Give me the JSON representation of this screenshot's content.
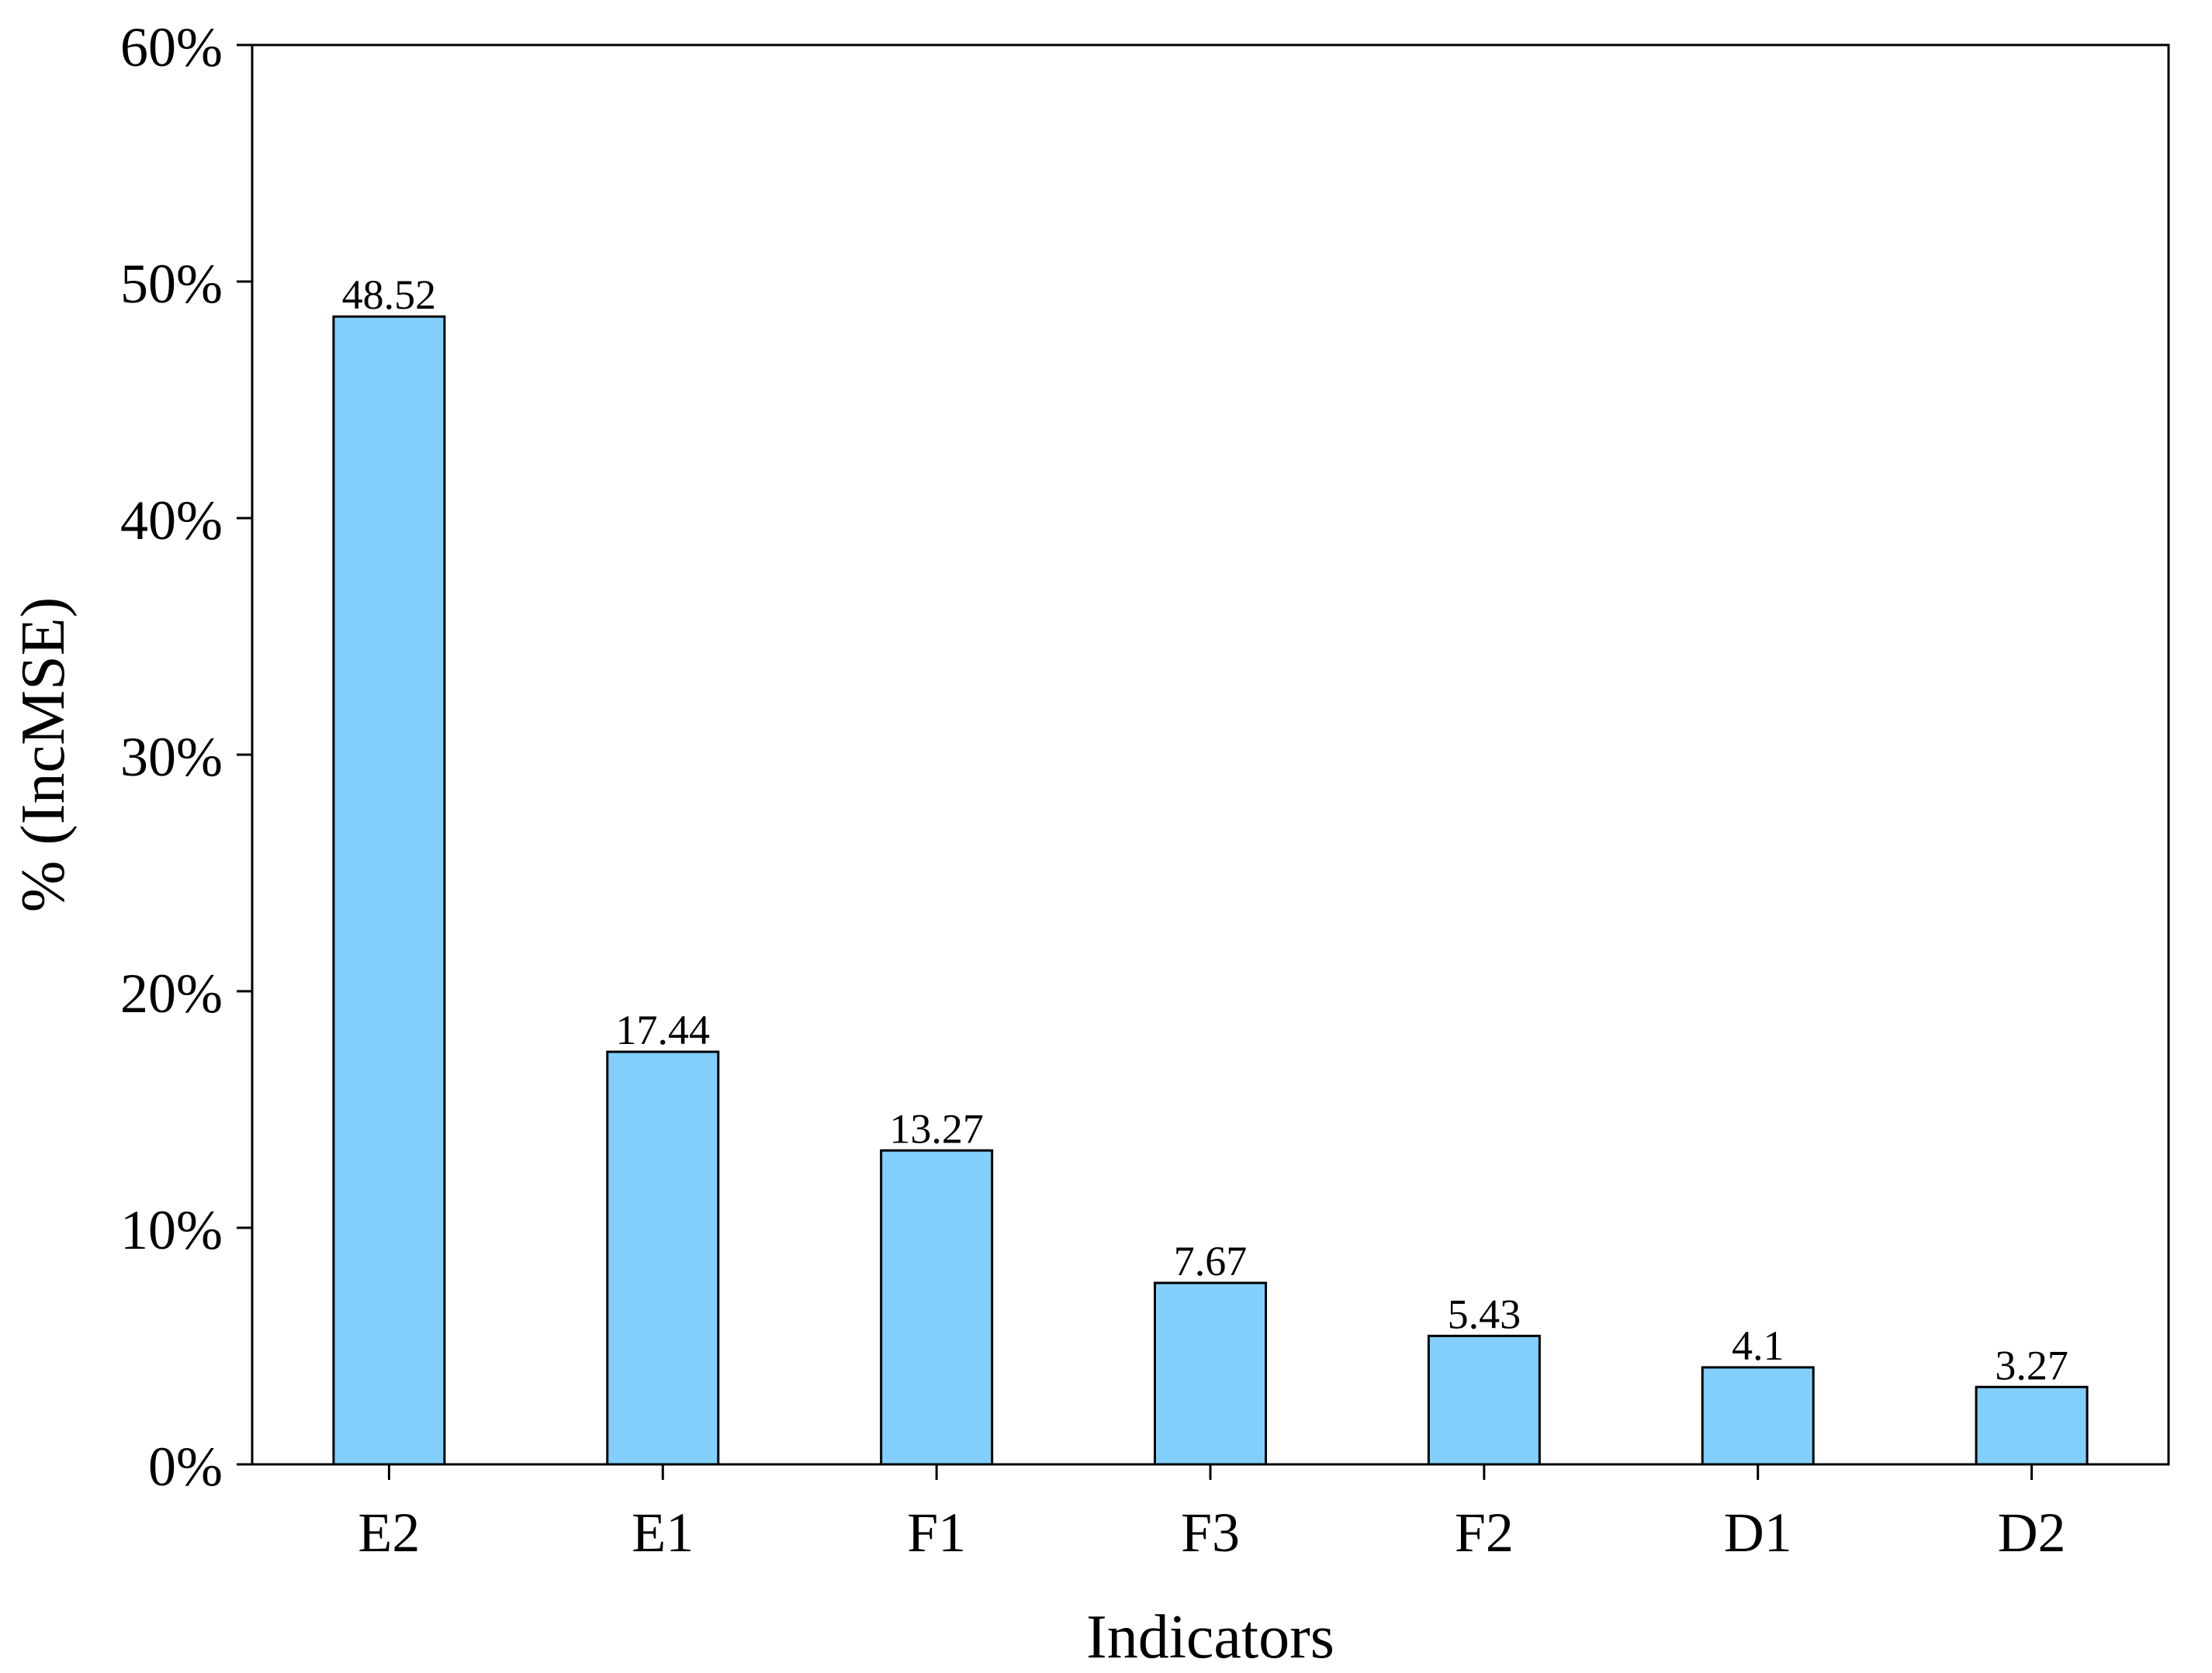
{
  "chart_data": {
    "type": "bar",
    "xlabel": "Indicators",
    "ylabel": "% (IncMSE)",
    "categories": [
      "E2",
      "E1",
      "F1",
      "F3",
      "F2",
      "D1",
      "D2"
    ],
    "values": [
      48.52,
      17.44,
      13.27,
      7.67,
      5.43,
      4.1,
      3.27
    ],
    "data_labels": [
      "48.52",
      "17.44",
      "13.27",
      "7.67",
      "5.43",
      "4.1",
      "3.27"
    ],
    "ylim": [
      0,
      60
    ],
    "yticks": [
      0,
      10,
      20,
      30,
      40,
      50,
      60
    ],
    "ytick_labels": [
      "0%",
      "10%",
      "20%",
      "30%",
      "40%",
      "50%",
      "60%"
    ],
    "grid": false,
    "legend": "none",
    "bar_color": "#82CFFE",
    "bar_edge_color": "#000000"
  }
}
